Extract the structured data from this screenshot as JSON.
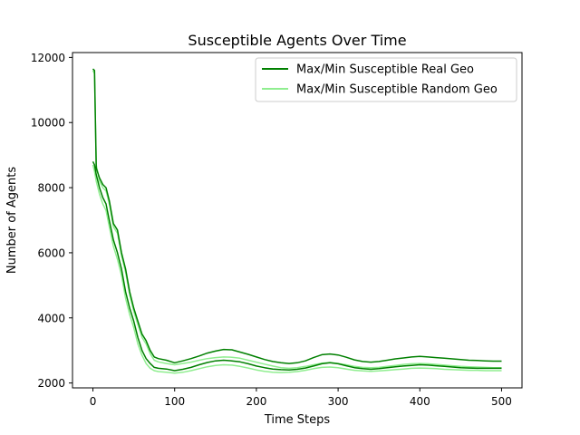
{
  "chart_data": {
    "type": "line",
    "title": "Susceptible Agents Over Time",
    "xlabel": "Time Steps",
    "ylabel": "Number of Agents",
    "xlim": [
      -25,
      525
    ],
    "ylim": [
      1850,
      12150
    ],
    "xticks": [
      0,
      100,
      200,
      300,
      400,
      500
    ],
    "yticks": [
      2000,
      4000,
      6000,
      8000,
      10000,
      12000
    ],
    "grid": false,
    "legend_position": "top-right",
    "colors": {
      "real": "#008000",
      "random": "#90ee90"
    },
    "series": [
      {
        "name": "Max/Min Susceptible Real Geo",
        "color": "#008000",
        "band": "upper",
        "x": [
          0,
          2,
          4,
          8,
          12,
          16,
          20,
          25,
          30,
          35,
          40,
          45,
          50,
          55,
          60,
          65,
          70,
          75,
          80,
          90,
          100,
          110,
          120,
          130,
          140,
          150,
          160,
          170,
          180,
          190,
          200,
          210,
          220,
          230,
          240,
          250,
          260,
          270,
          280,
          290,
          300,
          310,
          320,
          330,
          340,
          350,
          360,
          370,
          380,
          390,
          400,
          410,
          420,
          430,
          440,
          450,
          460,
          470,
          480,
          490,
          500
        ],
        "y": [
          11650,
          11600,
          8600,
          8300,
          8100,
          8000,
          7600,
          6900,
          6700,
          6000,
          5500,
          4800,
          4300,
          3900,
          3500,
          3300,
          3000,
          2800,
          2750,
          2700,
          2620,
          2680,
          2750,
          2830,
          2920,
          2980,
          3030,
          3020,
          2950,
          2880,
          2800,
          2720,
          2660,
          2620,
          2600,
          2620,
          2680,
          2780,
          2870,
          2890,
          2860,
          2790,
          2710,
          2660,
          2640,
          2660,
          2700,
          2740,
          2770,
          2800,
          2820,
          2800,
          2780,
          2760,
          2740,
          2720,
          2700,
          2690,
          2680,
          2670,
          2670
        ]
      },
      {
        "name": "Max/Min Susceptible Real Geo",
        "color": "#008000",
        "band": "lower",
        "x": [
          0,
          2,
          4,
          8,
          12,
          16,
          20,
          25,
          30,
          35,
          40,
          45,
          50,
          55,
          60,
          65,
          70,
          75,
          80,
          90,
          100,
          110,
          120,
          130,
          140,
          150,
          160,
          170,
          180,
          190,
          200,
          210,
          220,
          230,
          240,
          250,
          260,
          270,
          280,
          290,
          300,
          310,
          320,
          330,
          340,
          350,
          360,
          370,
          380,
          390,
          400,
          410,
          420,
          430,
          440,
          450,
          460,
          470,
          480,
          490,
          500
        ],
        "y": [
          8800,
          8700,
          8400,
          8000,
          7700,
          7500,
          7000,
          6400,
          6000,
          5500,
          4800,
          4300,
          3900,
          3400,
          3000,
          2750,
          2600,
          2480,
          2450,
          2430,
          2380,
          2420,
          2480,
          2560,
          2630,
          2680,
          2700,
          2680,
          2650,
          2590,
          2520,
          2470,
          2430,
          2410,
          2400,
          2420,
          2460,
          2520,
          2590,
          2620,
          2590,
          2530,
          2470,
          2440,
          2420,
          2440,
          2470,
          2500,
          2520,
          2540,
          2560,
          2550,
          2530,
          2510,
          2490,
          2470,
          2460,
          2450,
          2450,
          2450,
          2450
        ]
      },
      {
        "name": "Max/Min Susceptible Random Geo",
        "color": "#90ee90",
        "band": "upper",
        "x": [
          0,
          2,
          4,
          8,
          12,
          16,
          20,
          25,
          30,
          35,
          40,
          45,
          50,
          55,
          60,
          65,
          70,
          75,
          80,
          90,
          100,
          110,
          120,
          130,
          140,
          150,
          160,
          170,
          180,
          190,
          200,
          210,
          220,
          230,
          240,
          250,
          260,
          270,
          280,
          290,
          300,
          310,
          320,
          330,
          340,
          350,
          360,
          370,
          380,
          390,
          400,
          410,
          420,
          430,
          440,
          450,
          460,
          470,
          480,
          490,
          500
        ],
        "y": [
          11600,
          11500,
          8700,
          8200,
          8000,
          7900,
          7500,
          6800,
          6600,
          5900,
          5400,
          4700,
          4200,
          3800,
          3400,
          3200,
          2900,
          2700,
          2650,
          2600,
          2560,
          2600,
          2640,
          2700,
          2750,
          2780,
          2800,
          2790,
          2760,
          2700,
          2640,
          2580,
          2520,
          2470,
          2450,
          2470,
          2510,
          2560,
          2610,
          2630,
          2600,
          2560,
          2510,
          2480,
          2470,
          2480,
          2510,
          2540,
          2570,
          2590,
          2600,
          2590,
          2570,
          2550,
          2530,
          2510,
          2500,
          2490,
          2480,
          2470,
          2470
        ]
      },
      {
        "name": "Max/Min Susceptible Random Geo",
        "color": "#90ee90",
        "band": "lower",
        "x": [
          0,
          2,
          4,
          8,
          12,
          16,
          20,
          25,
          30,
          35,
          40,
          45,
          50,
          55,
          60,
          65,
          70,
          75,
          80,
          90,
          100,
          110,
          120,
          130,
          140,
          150,
          160,
          170,
          180,
          190,
          200,
          210,
          220,
          230,
          240,
          250,
          260,
          270,
          280,
          290,
          300,
          310,
          320,
          330,
          340,
          350,
          360,
          370,
          380,
          390,
          400,
          410,
          420,
          430,
          440,
          450,
          460,
          470,
          480,
          490,
          500
        ],
        "y": [
          8700,
          8500,
          8200,
          7800,
          7500,
          7300,
          6800,
          6200,
          5800,
          5300,
          4600,
          4100,
          3700,
          3200,
          2850,
          2600,
          2450,
          2380,
          2350,
          2330,
          2300,
          2330,
          2380,
          2440,
          2500,
          2540,
          2560,
          2550,
          2510,
          2460,
          2400,
          2360,
          2330,
          2320,
          2330,
          2350,
          2390,
          2440,
          2480,
          2490,
          2470,
          2430,
          2390,
          2370,
          2360,
          2370,
          2390,
          2410,
          2430,
          2450,
          2460,
          2450,
          2440,
          2420,
          2410,
          2400,
          2390,
          2390,
          2380,
          2380,
          2380
        ]
      }
    ],
    "legend": [
      {
        "label": "Max/Min Susceptible Real Geo",
        "color": "#008000"
      },
      {
        "label": "Max/Min Susceptible Random Geo",
        "color": "#90ee90"
      }
    ]
  }
}
